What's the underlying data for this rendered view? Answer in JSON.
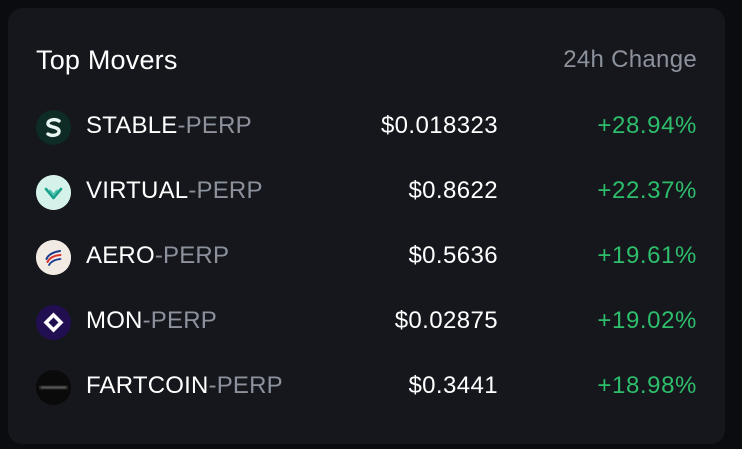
{
  "widget": {
    "title": "Top Movers",
    "column_label": "24h Change"
  },
  "rows": [
    {
      "base": "STABLE",
      "quote": "-PERP",
      "price": "$0.018323",
      "change": "+28.94%",
      "icon": "stable-logo-icon"
    },
    {
      "base": "VIRTUAL",
      "quote": "-PERP",
      "price": "$0.8622",
      "change": "+22.37%",
      "icon": "virtual-logo-icon"
    },
    {
      "base": "AERO",
      "quote": "-PERP",
      "price": "$0.5636",
      "change": "+19.61%",
      "icon": "aero-logo-icon"
    },
    {
      "base": "MON",
      "quote": "-PERP",
      "price": "$0.02875",
      "change": "+19.02%",
      "icon": "mon-logo-icon"
    },
    {
      "base": "FARTCOIN",
      "quote": "-PERP",
      "price": "$0.3441",
      "change": "+18.98%",
      "icon": "fartcoin-logo-icon"
    }
  ],
  "colors": {
    "positive": "#2ebd6b",
    "card_background": "#15171c",
    "page_background": "#0b0c0f",
    "muted_text": "#8c919c"
  }
}
